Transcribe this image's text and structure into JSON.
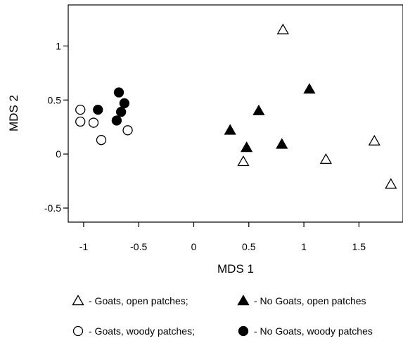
{
  "chart_data": {
    "type": "scatter",
    "xlabel": "MDS 1",
    "ylabel": "MDS 2",
    "xlim": [
      -1.14,
      1.9
    ],
    "ylim": [
      -0.63,
      1.38
    ],
    "xticks": [
      -1,
      -0.5,
      0,
      0.5,
      1,
      1.5
    ],
    "xtick_labels": [
      "-1",
      "-0.5",
      "0",
      "0.5",
      "1",
      "1.5"
    ],
    "yticks": [
      -0.5,
      0,
      0.5,
      1
    ],
    "ytick_labels": [
      "-0.5",
      "0",
      "0.5",
      "1"
    ],
    "grid": false,
    "legend_position": "bottom",
    "series": [
      {
        "name": "- Goats, open patches;",
        "marker": "triangle-open",
        "points": [
          [
            0.81,
            1.15
          ],
          [
            0.45,
            -0.07
          ],
          [
            1.2,
            -0.05
          ],
          [
            1.64,
            0.12
          ],
          [
            1.79,
            -0.28
          ]
        ]
      },
      {
        "name": "- No Goats, open patches",
        "marker": "triangle-filled",
        "points": [
          [
            0.33,
            0.22
          ],
          [
            0.48,
            0.06
          ],
          [
            0.59,
            0.4
          ],
          [
            0.8,
            0.09
          ],
          [
            1.05,
            0.6
          ]
        ]
      },
      {
        "name": "- Goats, woody patches;",
        "marker": "circle-open",
        "points": [
          [
            -1.03,
            0.41
          ],
          [
            -1.03,
            0.3
          ],
          [
            -0.91,
            0.29
          ],
          [
            -0.84,
            0.13
          ],
          [
            -0.6,
            0.22
          ]
        ]
      },
      {
        "name": "- No Goats, woody patches",
        "marker": "circle-filled",
        "points": [
          [
            -0.87,
            0.41
          ],
          [
            -0.7,
            0.31
          ],
          [
            -0.68,
            0.57
          ],
          [
            -0.66,
            0.39
          ],
          [
            -0.63,
            0.47
          ]
        ]
      }
    ]
  }
}
